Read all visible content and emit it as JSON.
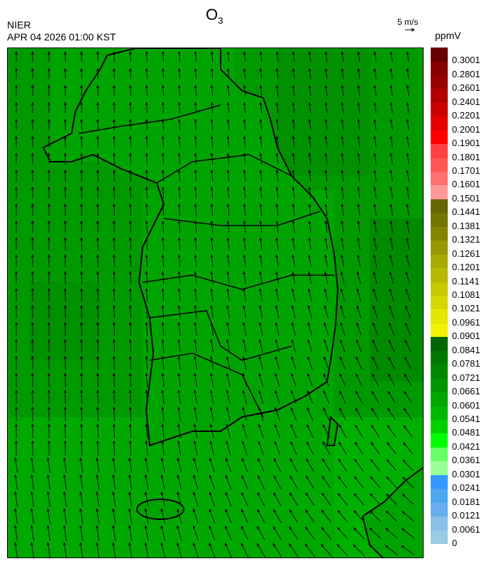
{
  "header": {
    "agency": "NIER",
    "timestamp": "APR 04 2026 01:00 KST",
    "title_main": "O",
    "title_sub": "3",
    "wind_reference": "5 m/s",
    "unit": "ppmV"
  },
  "map": {
    "region": "Korean Peninsula",
    "field": "O3 concentration",
    "background_color": "#009a00",
    "outline_color": "#000000",
    "boundary_color": "#cccccc",
    "wind_arrows": "black vectors, mostly northward, north-westward in south-east"
  },
  "legend": {
    "labels": [
      "0.3001",
      "0.2801",
      "0.2601",
      "0.2401",
      "0.2201",
      "0.2001",
      "0.1901",
      "0.1801",
      "0.1701",
      "0.1601",
      "0.1501",
      "0.1441",
      "0.1381",
      "0.1321",
      "0.1261",
      "0.1201",
      "0.1141",
      "0.1081",
      "0.1021",
      "0.0961",
      "0.0901",
      "0.0841",
      "0.0781",
      "0.0721",
      "0.0661",
      "0.0601",
      "0.0541",
      "0.0481",
      "0.0421",
      "0.0361",
      "0.0301",
      "0.0241",
      "0.0181",
      "0.0121",
      "0.0061",
      "0"
    ],
    "colors": [
      "#660000",
      "#880000",
      "#990000",
      "#b20000",
      "#cc0000",
      "#e60000",
      "#ff0000",
      "#ff4040",
      "#ff5555",
      "#ff7070",
      "#ff9999",
      "#666600",
      "#747400",
      "#848400",
      "#989800",
      "#aaaa00",
      "#b8b800",
      "#c8c800",
      "#d6d600",
      "#e6e600",
      "#f2f200",
      "#006600",
      "#007800",
      "#008800",
      "#009600",
      "#00a800",
      "#00b800",
      "#00d000",
      "#00ff00",
      "#66ff66",
      "#99ff99",
      "#3399ff",
      "#4ca6f0",
      "#66aeee",
      "#88c0e8",
      "#99cce6"
    ]
  }
}
